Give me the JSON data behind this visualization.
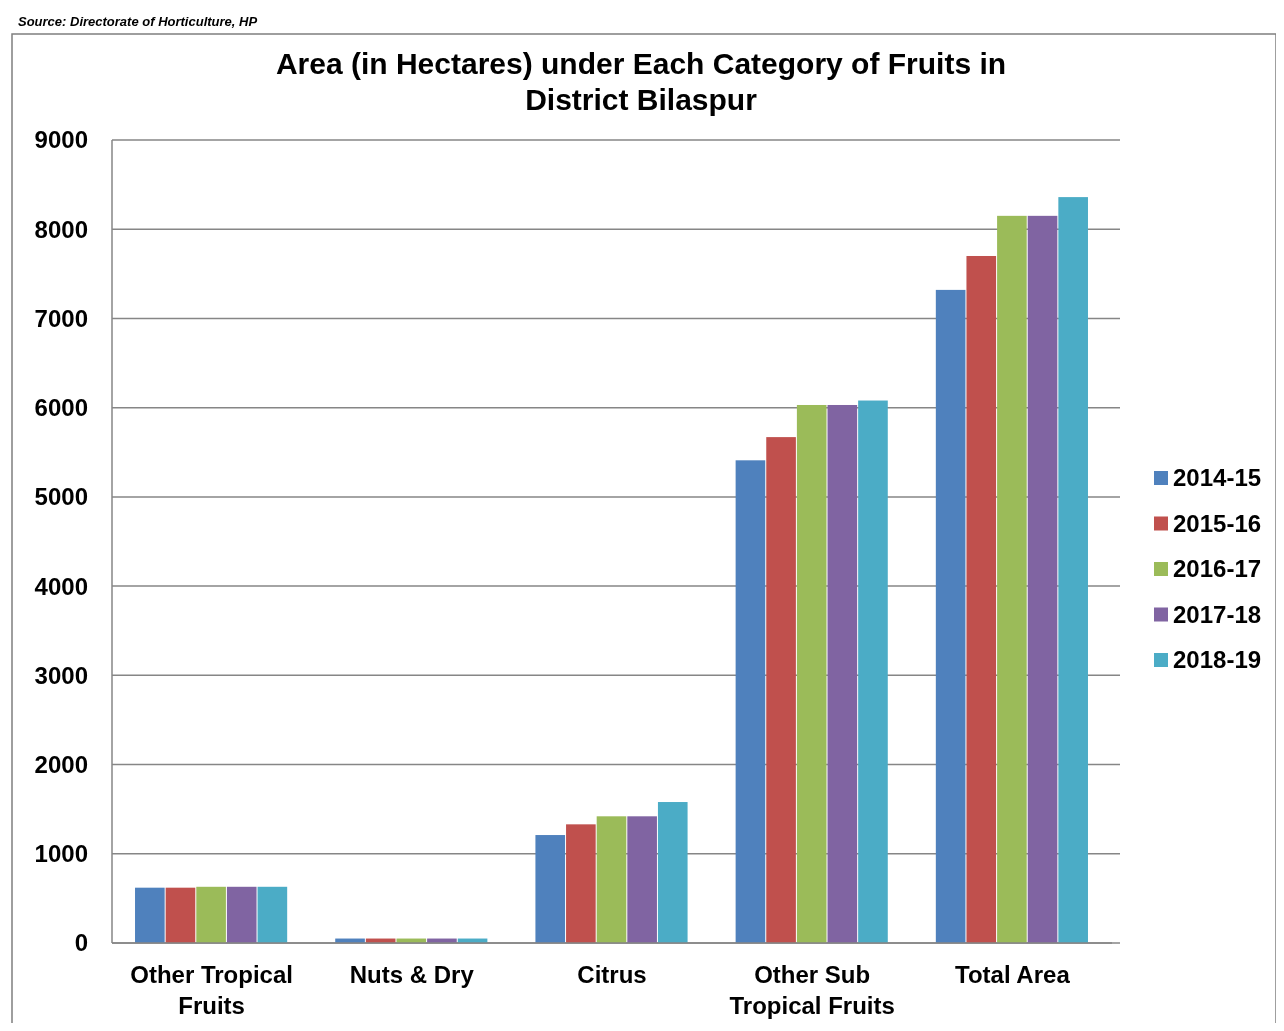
{
  "chart_data": {
    "type": "bar",
    "title": "Area (in Hectares) under Each Category of Fruits in District Bilaspur",
    "categories": [
      "Other Tropical Fruits",
      "Nuts & Dry",
      "Citrus",
      "Other Sub Tropical Fruits",
      "Total Area"
    ],
    "series": [
      {
        "name": "2014-15",
        "color": "#4f81bd",
        "values": [
          620,
          50,
          1210,
          5410,
          7320
        ]
      },
      {
        "name": "2015-16",
        "color": "#c0504d",
        "values": [
          620,
          50,
          1330,
          5670,
          7700
        ]
      },
      {
        "name": "2016-17",
        "color": "#9bbb59",
        "values": [
          630,
          50,
          1420,
          6030,
          8150
        ]
      },
      {
        "name": "2017-18",
        "color": "#8064a2",
        "values": [
          630,
          50,
          1420,
          6030,
          8150
        ]
      },
      {
        "name": "2018-19",
        "color": "#4bacc6",
        "values": [
          630,
          50,
          1580,
          6080,
          8360
        ]
      }
    ],
    "ylim": [
      0,
      9000
    ],
    "yticks": [
      0,
      1000,
      2000,
      3000,
      4000,
      5000,
      6000,
      7000,
      8000,
      9000
    ],
    "grid": "y",
    "legend": "right",
    "annotations": [
      "Source: Directorate of Horticulture, HP"
    ]
  }
}
